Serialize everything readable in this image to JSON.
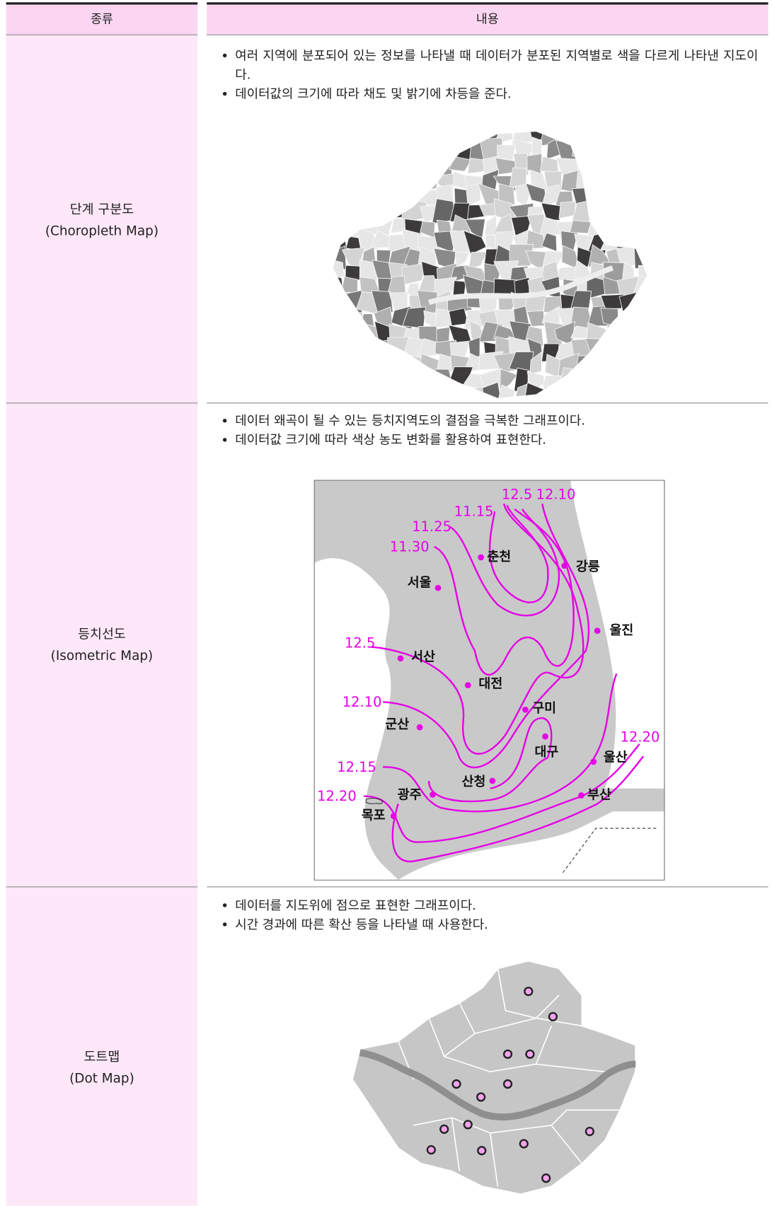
{
  "table": {
    "header": [
      "종류",
      "내용"
    ],
    "rows": [
      {
        "type": "단계 구분도",
        "type_en": "(Choropleth Map)",
        "bullets": [
          "여러 지역에 분포되어 있는 정보를 나타낼 때 데이터가 분포된 지역별로 색을 다르게 나타낸 지도이다.",
          "데이터값의 크기에 따라 채도 및 밝기에 차등을 준다."
        ]
      },
      {
        "type": "등치선도",
        "type_en": "(Isometric Map)",
        "bullets": [
          "데이터 왜곡이 될 수 있는 등치지역도의 결점을 극복한 그래프이다.",
          "데이터값 크기에 따라 색상 농도 변화를 활용하여 표현한다."
        ]
      },
      {
        "type": "도트맵",
        "type_en": "(Dot Map)",
        "bullets": [
          "데이터를 지도위에 점으로 표현한 그래프이다.",
          "시간 경과에 따른 확산 등을 나타낼 때 사용한다."
        ]
      }
    ]
  },
  "isometric_map": {
    "isolines": [
      "12.5",
      "12.10",
      "11.15",
      "11.25",
      "11.30",
      "12.5",
      "12.10",
      "12.15",
      "12.20",
      "12.20"
    ],
    "cities": [
      "춘천",
      "강릉",
      "서울",
      "울진",
      "서산",
      "대전",
      "구미",
      "군산",
      "대구",
      "울산",
      "산청",
      "광주",
      "부산",
      "목포"
    ]
  }
}
